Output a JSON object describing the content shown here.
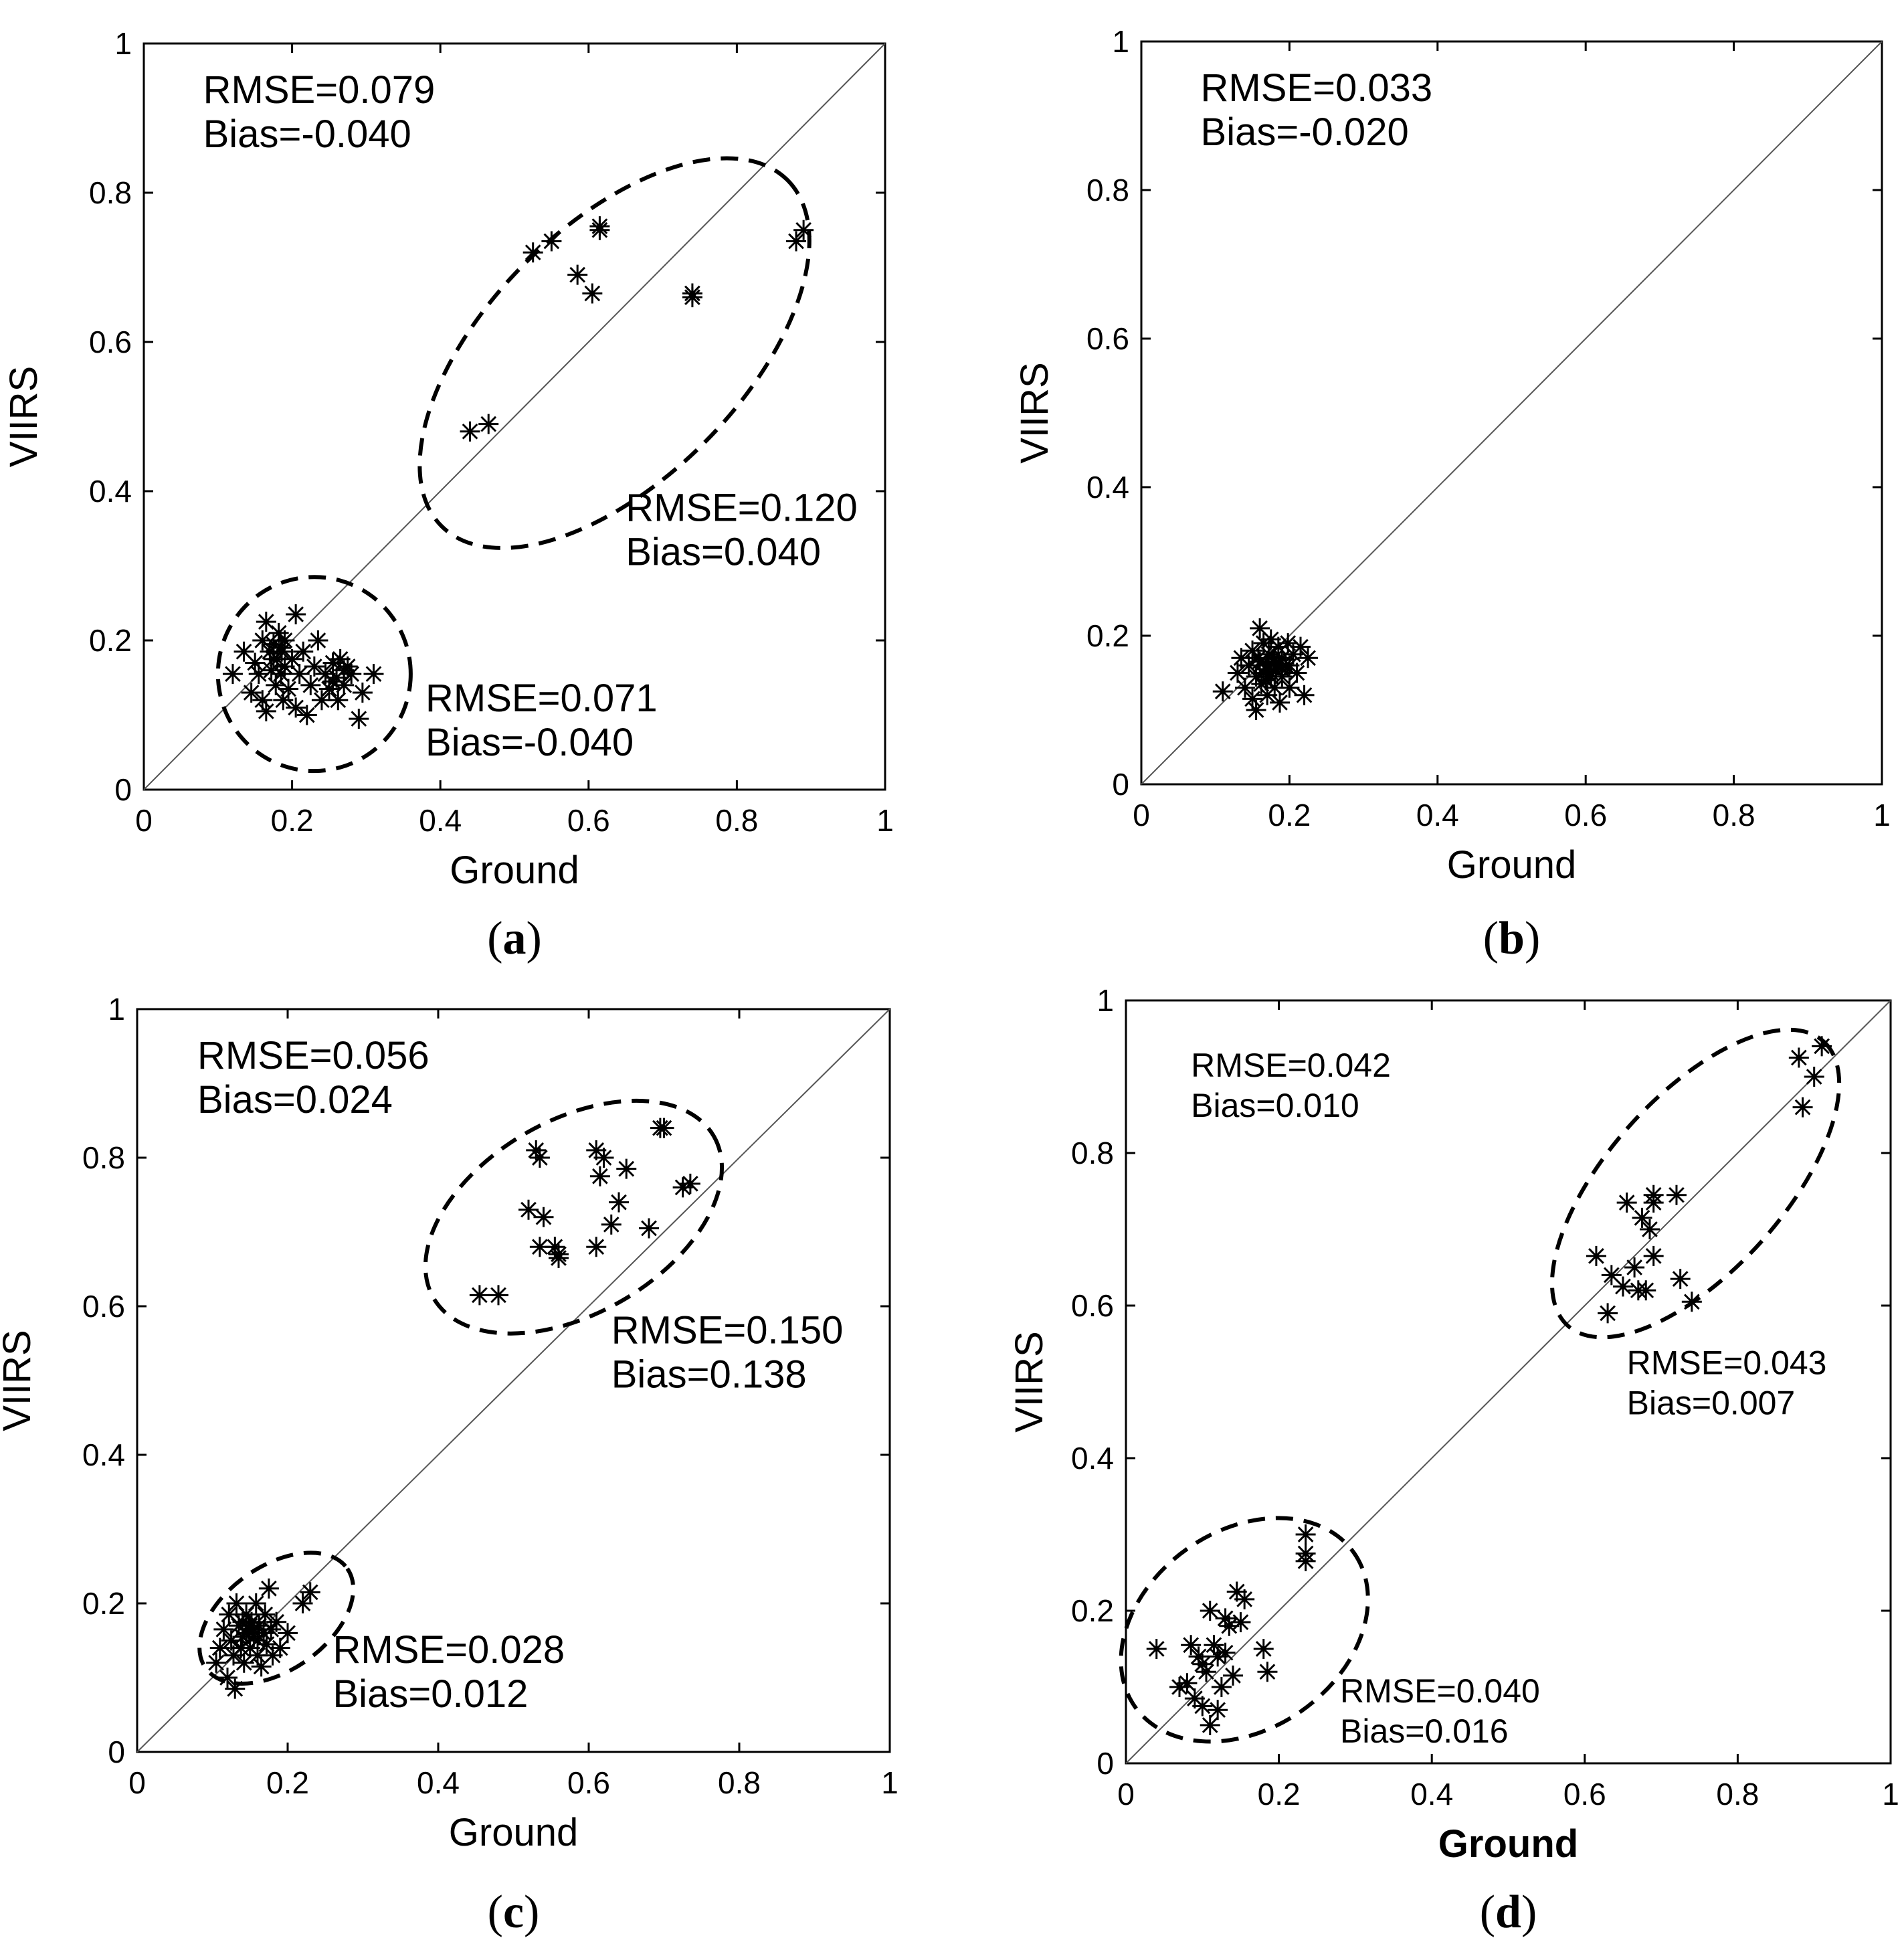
{
  "chart_data": [
    {
      "type": "scatter",
      "panel": "a",
      "caption_letter": "a",
      "xlabel": "Ground",
      "ylabel": "VIIRS",
      "xlim": [
        0,
        1
      ],
      "ylim": [
        0,
        1
      ],
      "ticks": [
        "0",
        "0.2",
        "0.4",
        "0.6",
        "0.8",
        "1"
      ],
      "ticks_y": [
        "0",
        "0.2",
        "0.4",
        "0.6",
        "0.8",
        "1"
      ],
      "one_to_one_line": true,
      "annotations": [
        {
          "line1": "RMSE=0.079",
          "line2": "Bias=-0.040",
          "x": 0.08,
          "y": 0.92,
          "scope": "overall"
        },
        {
          "line1": "RMSE=0.120",
          "line2": "Bias=0.040",
          "x": 0.65,
          "y": 0.36,
          "scope": "high-cluster"
        },
        {
          "line1": "RMSE=0.071",
          "line2": "Bias=-0.040",
          "x": 0.38,
          "y": 0.105,
          "scope": "low-cluster"
        }
      ],
      "clusters": [
        {
          "cx": 0.23,
          "cy": 0.155,
          "rx": 0.13,
          "ry": 0.13,
          "angle": 0
        },
        {
          "cx": 0.635,
          "cy": 0.585,
          "rx": 0.33,
          "ry": 0.17,
          "angle": 45
        }
      ],
      "series": [
        {
          "name": "samples",
          "points": [
            [
              0.44,
              0.48
            ],
            [
              0.465,
              0.49
            ],
            [
              0.525,
              0.72
            ],
            [
              0.55,
              0.735
            ],
            [
              0.585,
              0.69
            ],
            [
              0.605,
              0.665
            ],
            [
              0.615,
              0.755
            ],
            [
              0.615,
              0.75
            ],
            [
              0.74,
              0.665
            ],
            [
              0.74,
              0.66
            ],
            [
              0.88,
              0.735
            ],
            [
              0.89,
              0.75
            ],
            [
              0.12,
              0.155
            ],
            [
              0.135,
              0.185
            ],
            [
              0.145,
              0.13
            ],
            [
              0.15,
              0.17
            ],
            [
              0.155,
              0.155
            ],
            [
              0.16,
              0.2
            ],
            [
              0.16,
              0.12
            ],
            [
              0.165,
              0.225
            ],
            [
              0.165,
              0.105
            ],
            [
              0.17,
              0.185
            ],
            [
              0.172,
              0.16
            ],
            [
              0.175,
              0.195
            ],
            [
              0.178,
              0.14
            ],
            [
              0.18,
              0.175
            ],
            [
              0.182,
              0.21
            ],
            [
              0.185,
              0.155
            ],
            [
              0.186,
              0.185
            ],
            [
              0.188,
              0.12
            ],
            [
              0.19,
              0.165
            ],
            [
              0.19,
              0.2
            ],
            [
              0.195,
              0.135
            ],
            [
              0.2,
              0.175
            ],
            [
              0.205,
              0.235
            ],
            [
              0.205,
              0.11
            ],
            [
              0.21,
              0.155
            ],
            [
              0.215,
              0.185
            ],
            [
              0.22,
              0.1
            ],
            [
              0.225,
              0.14
            ],
            [
              0.23,
              0.165
            ],
            [
              0.235,
              0.2
            ],
            [
              0.24,
              0.12
            ],
            [
              0.245,
              0.155
            ],
            [
              0.25,
              0.135
            ],
            [
              0.255,
              0.17
            ],
            [
              0.26,
              0.15
            ],
            [
              0.262,
              0.12
            ],
            [
              0.265,
              0.175
            ],
            [
              0.27,
              0.14
            ],
            [
              0.275,
              0.165
            ],
            [
              0.28,
              0.155
            ],
            [
              0.29,
              0.095
            ],
            [
              0.295,
              0.13
            ],
            [
              0.31,
              0.155
            ],
            [
              0.27,
              0.16
            ],
            [
              0.255,
              0.145
            ],
            [
              0.175,
              0.175
            ],
            [
              0.185,
              0.19
            ]
          ]
        }
      ]
    },
    {
      "type": "scatter",
      "panel": "b",
      "caption_letter": "b",
      "xlabel": "Ground",
      "ylabel": "VIIRS",
      "xlim": [
        0,
        1
      ],
      "ylim": [
        0,
        1
      ],
      "ticks": [
        "0",
        "0.2",
        "0.4",
        "0.6",
        "0.8",
        "1"
      ],
      "ticks_y": [
        "0",
        "0.2",
        "0.4",
        "0.6",
        "0.8",
        "1"
      ],
      "one_to_one_line": true,
      "annotations": [
        {
          "line1": "RMSE=0.033",
          "line2": "Bias=-0.020",
          "x": 0.08,
          "y": 0.92,
          "scope": "overall"
        }
      ],
      "clusters": [],
      "series": [
        {
          "name": "samples",
          "points": [
            [
              0.11,
              0.125
            ],
            [
              0.13,
              0.15
            ],
            [
              0.135,
              0.17
            ],
            [
              0.14,
              0.13
            ],
            [
              0.145,
              0.16
            ],
            [
              0.15,
              0.115
            ],
            [
              0.15,
              0.18
            ],
            [
              0.155,
              0.145
            ],
            [
              0.155,
              0.1
            ],
            [
              0.16,
              0.21
            ],
            [
              0.16,
              0.165
            ],
            [
              0.162,
              0.135
            ],
            [
              0.165,
              0.19
            ],
            [
              0.168,
              0.155
            ],
            [
              0.17,
              0.12
            ],
            [
              0.172,
              0.175
            ],
            [
              0.175,
              0.145
            ],
            [
              0.175,
              0.195
            ],
            [
              0.178,
              0.165
            ],
            [
              0.18,
              0.13
            ],
            [
              0.182,
              0.155
            ],
            [
              0.185,
              0.185
            ],
            [
              0.187,
              0.11
            ],
            [
              0.19,
              0.17
            ],
            [
              0.19,
              0.145
            ],
            [
              0.195,
              0.16
            ],
            [
              0.198,
              0.19
            ],
            [
              0.2,
              0.13
            ],
            [
              0.205,
              0.175
            ],
            [
              0.21,
              0.15
            ],
            [
              0.215,
              0.185
            ],
            [
              0.22,
              0.12
            ],
            [
              0.225,
              0.17
            ],
            [
              0.17,
              0.16
            ],
            [
              0.165,
              0.15
            ],
            [
              0.18,
              0.17
            ],
            [
              0.158,
              0.17
            ],
            [
              0.185,
              0.16
            ],
            [
              0.175,
              0.15
            ],
            [
              0.168,
              0.14
            ],
            [
              0.19,
              0.155
            ],
            [
              0.2,
              0.16
            ]
          ]
        }
      ]
    },
    {
      "type": "scatter",
      "panel": "c",
      "caption_letter": "c",
      "xlabel": "Ground",
      "ylabel": "VIIRS",
      "xlim": [
        0,
        1
      ],
      "ylim": [
        0,
        1
      ],
      "ticks": [
        "0",
        "0.2",
        "0.4",
        "0.6",
        "0.8",
        "1"
      ],
      "ticks_y": [
        "0",
        "0.2",
        "0.4",
        "0.6",
        "0.8",
        "1"
      ],
      "one_to_one_line": true,
      "annotations": [
        {
          "line1": "RMSE=0.056",
          "line2": "Bias=0.024",
          "x": 0.08,
          "y": 0.92,
          "scope": "overall"
        },
        {
          "line1": "RMSE=0.150",
          "line2": "Bias=0.138",
          "x": 0.63,
          "y": 0.55,
          "scope": "high-cluster"
        },
        {
          "line1": "RMSE=0.028",
          "line2": "Bias=0.012",
          "x": 0.26,
          "y": 0.12,
          "scope": "low-cluster"
        }
      ],
      "clusters": [
        {
          "cx": 0.185,
          "cy": 0.18,
          "rx": 0.115,
          "ry": 0.07,
          "angle": 35
        },
        {
          "cx": 0.58,
          "cy": 0.72,
          "rx": 0.215,
          "ry": 0.13,
          "angle": 30
        }
      ],
      "series": [
        {
          "name": "samples",
          "points": [
            [
              0.455,
              0.615
            ],
            [
              0.48,
              0.615
            ],
            [
              0.52,
              0.73
            ],
            [
              0.53,
              0.81
            ],
            [
              0.535,
              0.68
            ],
            [
              0.54,
              0.72
            ],
            [
              0.535,
              0.8
            ],
            [
              0.555,
              0.68
            ],
            [
              0.56,
              0.665
            ],
            [
              0.56,
              0.67
            ],
            [
              0.61,
              0.68
            ],
            [
              0.61,
              0.81
            ],
            [
              0.615,
              0.775
            ],
            [
              0.62,
              0.8
            ],
            [
              0.63,
              0.71
            ],
            [
              0.64,
              0.74
            ],
            [
              0.65,
              0.785
            ],
            [
              0.68,
              0.705
            ],
            [
              0.695,
              0.84
            ],
            [
              0.7,
              0.84
            ],
            [
              0.725,
              0.76
            ],
            [
              0.735,
              0.765
            ],
            [
              0.105,
              0.12
            ],
            [
              0.11,
              0.14
            ],
            [
              0.115,
              0.165
            ],
            [
              0.12,
              0.1
            ],
            [
              0.122,
              0.185
            ],
            [
              0.125,
              0.15
            ],
            [
              0.128,
              0.13
            ],
            [
              0.13,
              0.085
            ],
            [
              0.132,
              0.2
            ],
            [
              0.135,
              0.17
            ],
            [
              0.138,
              0.14
            ],
            [
              0.14,
              0.155
            ],
            [
              0.142,
              0.12
            ],
            [
              0.145,
              0.185
            ],
            [
              0.148,
              0.165
            ],
            [
              0.15,
              0.14
            ],
            [
              0.152,
              0.175
            ],
            [
              0.155,
              0.155
            ],
            [
              0.158,
              0.2
            ],
            [
              0.16,
              0.13
            ],
            [
              0.162,
              0.17
            ],
            [
              0.165,
              0.115
            ],
            [
              0.168,
              0.16
            ],
            [
              0.17,
              0.185
            ],
            [
              0.172,
              0.145
            ],
            [
              0.175,
              0.22
            ],
            [
              0.178,
              0.165
            ],
            [
              0.18,
              0.13
            ],
            [
              0.185,
              0.175
            ],
            [
              0.19,
              0.14
            ],
            [
              0.2,
              0.16
            ],
            [
              0.22,
              0.2
            ],
            [
              0.23,
              0.215
            ],
            [
              0.145,
              0.16
            ],
            [
              0.15,
              0.17
            ],
            [
              0.14,
              0.175
            ],
            [
              0.155,
              0.165
            ],
            [
              0.16,
              0.15
            ]
          ]
        }
      ]
    },
    {
      "type": "scatter",
      "panel": "d",
      "caption_letter": "d",
      "xlabel": "Ground",
      "ylabel": "VIIRS",
      "xlim": [
        0,
        1
      ],
      "ylim": [
        0,
        1
      ],
      "ticks": [
        "0",
        "0.2",
        "0.4",
        "0.6",
        "0.8",
        "1"
      ],
      "ticks_y": [
        "0",
        "0.2",
        "0.4",
        "0.6",
        "0.8",
        "1"
      ],
      "one_to_one_line": true,
      "annotations": [
        {
          "line1": "RMSE=0.042",
          "line2": "Bias=0.010",
          "x": 0.085,
          "y": 0.9,
          "scope": "overall"
        },
        {
          "line1": "RMSE=0.043",
          "line2": "Bias=0.007",
          "x": 0.655,
          "y": 0.51,
          "scope": "high-cluster"
        },
        {
          "line1": "RMSE=0.040",
          "line2": "Bias=0.016",
          "x": 0.28,
          "y": 0.08,
          "scope": "low-cluster"
        }
      ],
      "clusters": [
        {
          "cx": 0.155,
          "cy": 0.175,
          "rx": 0.175,
          "ry": 0.13,
          "angle": 35
        },
        {
          "cx": 0.745,
          "cy": 0.76,
          "rx": 0.25,
          "ry": 0.115,
          "angle": 48
        }
      ],
      "series": [
        {
          "name": "samples",
          "points": [
            [
              0.04,
              0.15
            ],
            [
              0.07,
              0.1
            ],
            [
              0.08,
              0.105
            ],
            [
              0.085,
              0.155
            ],
            [
              0.09,
              0.085
            ],
            [
              0.095,
              0.14
            ],
            [
              0.1,
              0.075
            ],
            [
              0.1,
              0.13
            ],
            [
              0.105,
              0.12
            ],
            [
              0.11,
              0.05
            ],
            [
              0.11,
              0.2
            ],
            [
              0.115,
              0.155
            ],
            [
              0.12,
              0.14
            ],
            [
              0.12,
              0.07
            ],
            [
              0.125,
              0.1
            ],
            [
              0.13,
              0.19
            ],
            [
              0.13,
              0.145
            ],
            [
              0.135,
              0.18
            ],
            [
              0.14,
              0.115
            ],
            [
              0.145,
              0.225
            ],
            [
              0.15,
              0.185
            ],
            [
              0.155,
              0.215
            ],
            [
              0.18,
              0.15
            ],
            [
              0.185,
              0.12
            ],
            [
              0.235,
              0.3
            ],
            [
              0.235,
              0.275
            ],
            [
              0.235,
              0.265
            ],
            [
              0.615,
              0.665
            ],
            [
              0.63,
              0.59
            ],
            [
              0.635,
              0.64
            ],
            [
              0.65,
              0.625
            ],
            [
              0.655,
              0.735
            ],
            [
              0.665,
              0.65
            ],
            [
              0.67,
              0.62
            ],
            [
              0.675,
              0.715
            ],
            [
              0.68,
              0.62
            ],
            [
              0.685,
              0.7
            ],
            [
              0.69,
              0.745
            ],
            [
              0.69,
              0.735
            ],
            [
              0.69,
              0.665
            ],
            [
              0.72,
              0.745
            ],
            [
              0.725,
              0.635
            ],
            [
              0.74,
              0.605
            ],
            [
              0.88,
              0.925
            ],
            [
              0.885,
              0.86
            ],
            [
              0.9,
              0.9
            ],
            [
              0.91,
              0.94
            ]
          ]
        }
      ]
    }
  ]
}
